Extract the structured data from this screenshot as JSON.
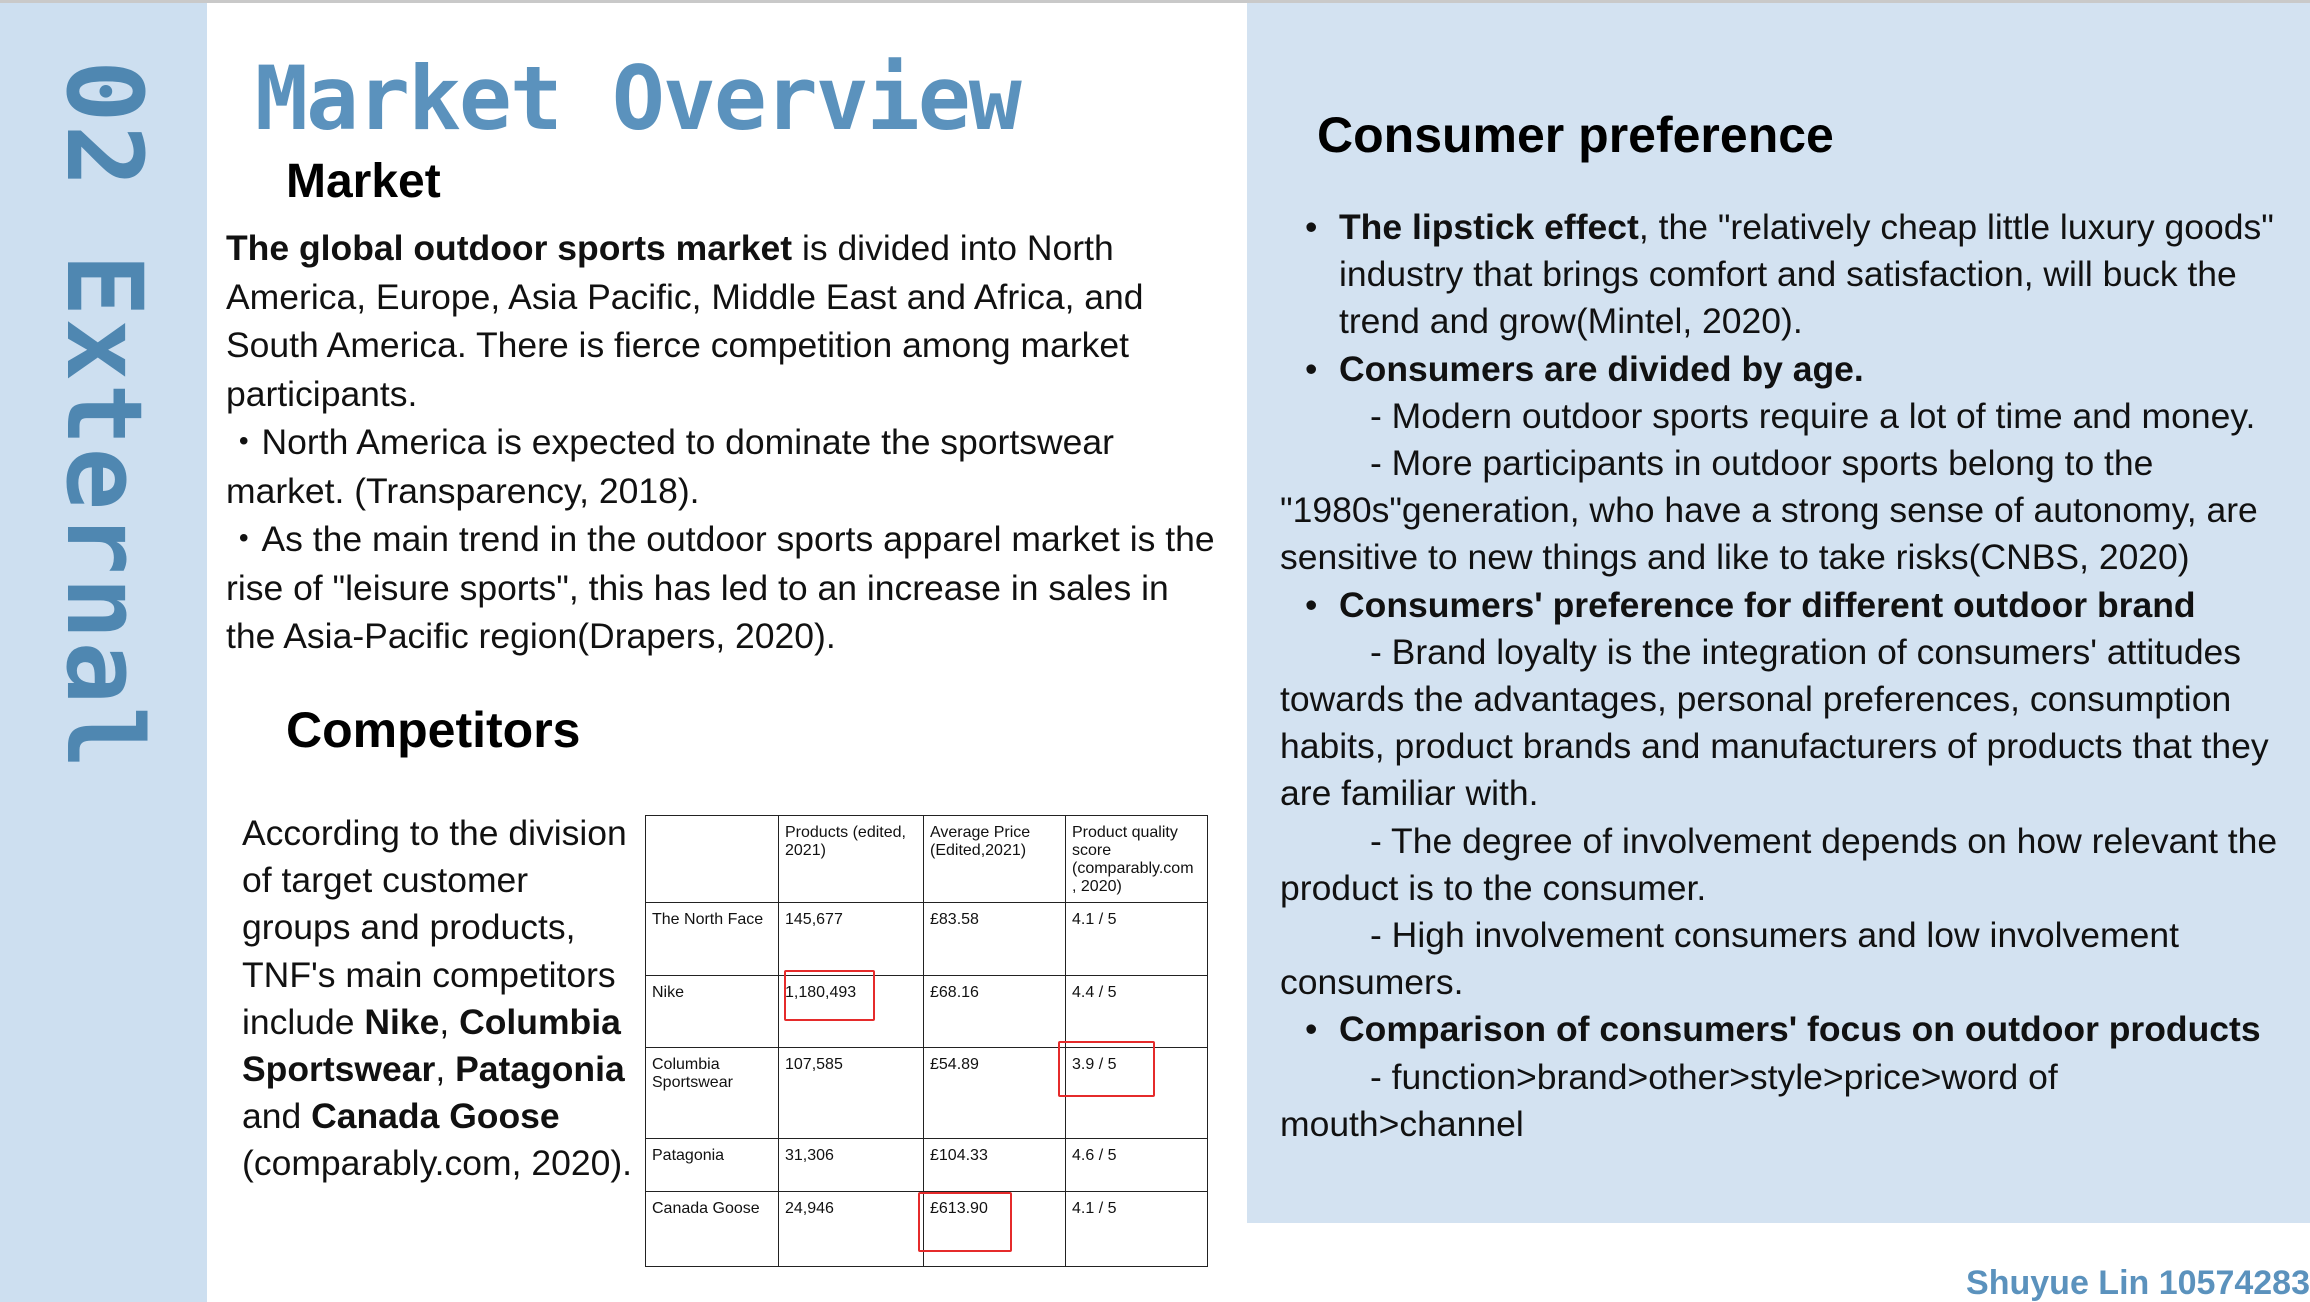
{
  "side_title": "02 External",
  "main_title": "Market Overview",
  "market": {
    "heading": "Market",
    "intro_bold": "The global outdoor sports market",
    "intro_rest": " is divided into North America, Europe, Asia Pacific, Middle East and Africa, and South America. There is fierce competition among market participants.",
    "point1": "・North America is expected to dominate the sportswear market. (Transparency, 2018).",
    "point2": "・As the main trend in the outdoor sports apparel market is the rise of \"leisure sports\", this has led to an increase in sales in the Asia-Pacific region(Drapers, 2020)."
  },
  "competitors": {
    "heading": "Competitors",
    "t1": "According to the division of target customer groups and products, TNF's main competitors include ",
    "b1": "Nike",
    "t2": ", ",
    "b2": "Columbia Sportswear",
    "t3": ", ",
    "b3": "Patagonia",
    "t4": " and ",
    "b4": "Canada Goose",
    "t5": " (comparably.com, 2020).",
    "table": {
      "headers": [
        "",
        "Products (edited, 2021)",
        "Average Price (Edited,2021)",
        "Product quality score (comparably.com , 2020)"
      ],
      "rows": [
        [
          "The North Face",
          "145,677",
          "£83.58",
          "4.1 / 5"
        ],
        [
          "Nike",
          "1,180,493",
          "£68.16",
          "4.4 / 5"
        ],
        [
          "Columbia Sportswear",
          "107,585",
          "£54.89",
          "3.9 / 5"
        ],
        [
          "Patagonia",
          "31,306",
          "£104.33",
          "4.6 / 5"
        ],
        [
          "Canada Goose",
          "24,946",
          "£613.90",
          "4.1 / 5"
        ]
      ]
    }
  },
  "consumer": {
    "heading": "Consumer preference",
    "bullet": "•",
    "b1_bold": "The lipstick effect",
    "b1_rest": ", the \"relatively cheap little luxury goods\" industry that brings comfort and satisfaction, will buck the trend and grow(Mintel, 2020).",
    "b2_bold": "Consumers are divided by age.",
    "b2_s1": "- Modern outdoor sports require a lot of time and money.",
    "b2_s2": "- More participants in outdoor sports belong to the \"1980s\"generation, who have a strong sense of autonomy, are sensitive to new things and like to take risks(CNBS, 2020)",
    "b3_bold": "Consumers' preference for different outdoor brand",
    "b3_s1": "- Brand loyalty is the integration of consumers' attitudes towards the advantages, personal preferences, consumption habits, product brands and manufacturers of products that they are familiar with.",
    "b3_s2": "- The degree of involvement depends on how relevant the product is to the consumer.",
    "b3_s3": "- High involvement consumers and low involvement consumers.",
    "b4_bold": "Comparison of consumers' focus on outdoor products",
    "b4_s1": "- function>brand>other>style>price>word of mouth>channel"
  },
  "footer": "Shuyue Lin 10574283",
  "colors": {
    "accent": "#5b92bd",
    "side_band": "#cddff0",
    "right_panel": "#d3e2f1",
    "highlight_box": "#e52b2b"
  }
}
